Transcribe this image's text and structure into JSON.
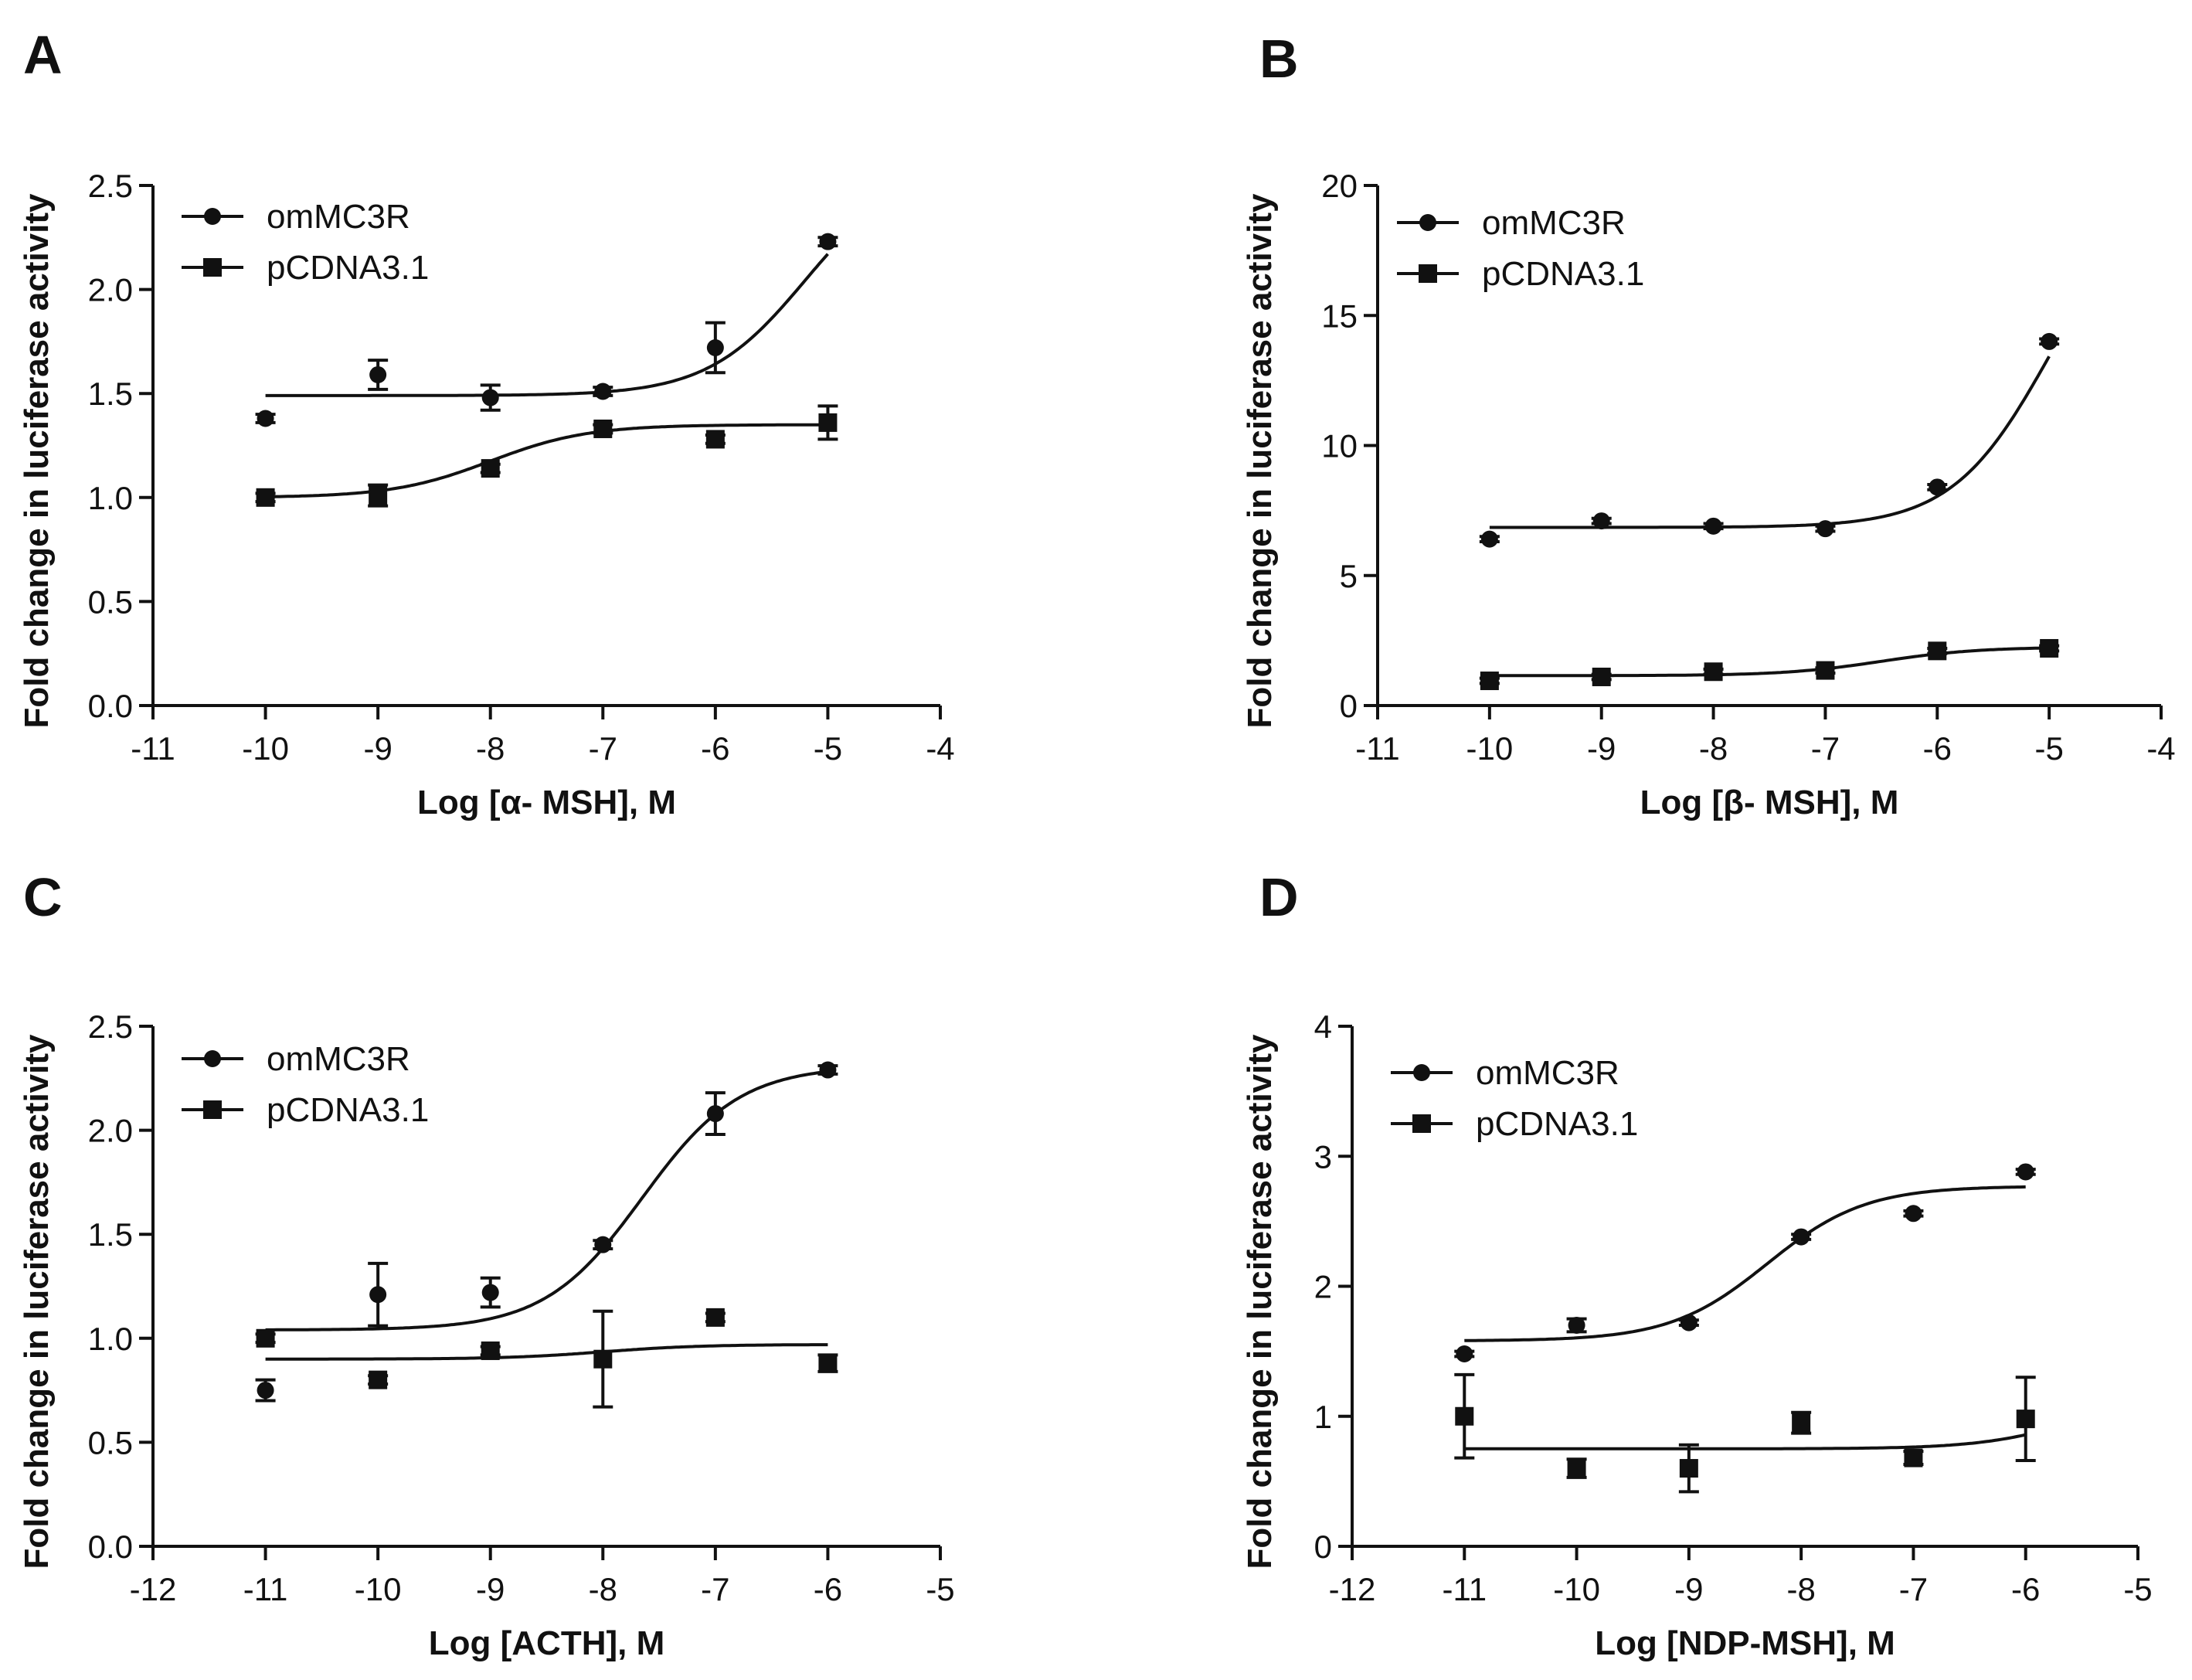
{
  "figure_title": "",
  "chart_data": [
    {
      "panel": "A",
      "type": "scatter",
      "title": "",
      "xlabel": "Log [α- MSH], M",
      "ylabel": "Fold  change in luciferase activity",
      "xlim": [
        -11,
        -4
      ],
      "ylim": [
        0,
        2.5
      ],
      "xticks": [
        "-11",
        "-10",
        "-9",
        "-8",
        "-7",
        "-6",
        "-5",
        "-4"
      ],
      "yticks": [
        "0.0",
        "0.5",
        "1.0",
        "1.5",
        "2.0",
        "2.5"
      ],
      "legend": {
        "placement": "top-left"
      },
      "series": [
        {
          "name": "omMC3R",
          "marker": "circle",
          "points": [
            {
              "x": -10,
              "y": 1.38,
              "err": 0.02
            },
            {
              "x": -9,
              "y": 1.59,
              "err": 0.07
            },
            {
              "x": -8,
              "y": 1.48,
              "err": 0.06
            },
            {
              "x": -7,
              "y": 1.51,
              "err": 0.02
            },
            {
              "x": -6,
              "y": 1.72,
              "err": 0.12
            },
            {
              "x": -5,
              "y": 2.23,
              "err": 0.02
            }
          ],
          "fit": {
            "bottom": 1.49,
            "top": 2.6,
            "logEC50": -5.2,
            "hill": 1.0
          }
        },
        {
          "name": "pCDNA3.1",
          "marker": "square",
          "points": [
            {
              "x": -10,
              "y": 1.0,
              "err": 0.02
            },
            {
              "x": -9,
              "y": 1.01,
              "err": 0.05
            },
            {
              "x": -8,
              "y": 1.14,
              "err": 0.02
            },
            {
              "x": -7,
              "y": 1.33,
              "err": 0.02
            },
            {
              "x": -6,
              "y": 1.28,
              "err": 0.02
            },
            {
              "x": -5,
              "y": 1.36,
              "err": 0.08
            }
          ],
          "fit": {
            "bottom": 1.0,
            "top": 1.35,
            "logEC50": -8.0,
            "hill": 1.0
          }
        }
      ]
    },
    {
      "panel": "B",
      "type": "scatter",
      "title": "",
      "xlabel": "Log [β- MSH], M",
      "ylabel": "Fold  change in luciferase activity",
      "xlim": [
        -11,
        -4
      ],
      "ylim": [
        0,
        20
      ],
      "xticks": [
        "-11",
        "-10",
        "-9",
        "-8",
        "-7",
        "-6",
        "-5",
        "-4"
      ],
      "yticks": [
        "0",
        "5",
        "10",
        "15",
        "20"
      ],
      "legend": {
        "placement": "top-left"
      },
      "series": [
        {
          "name": "omMC3R",
          "marker": "circle",
          "points": [
            {
              "x": -10,
              "y": 6.4,
              "err": 0.1
            },
            {
              "x": -9,
              "y": 7.1,
              "err": 0.1
            },
            {
              "x": -8,
              "y": 6.9,
              "err": 0.1
            },
            {
              "x": -7,
              "y": 6.8,
              "err": 0.1
            },
            {
              "x": -6,
              "y": 8.4,
              "err": 0.1
            },
            {
              "x": -5,
              "y": 14.0,
              "err": 0.1
            }
          ],
          "fit": {
            "bottom": 6.85,
            "top": 20.0,
            "logEC50": -5.0,
            "hill": 1.0
          }
        },
        {
          "name": "pCDNA3.1",
          "marker": "square",
          "points": [
            {
              "x": -10,
              "y": 0.95,
              "err": 0.1
            },
            {
              "x": -9,
              "y": 1.1,
              "err": 0.1
            },
            {
              "x": -8,
              "y": 1.3,
              "err": 0.1
            },
            {
              "x": -7,
              "y": 1.35,
              "err": 0.1
            },
            {
              "x": -6,
              "y": 2.1,
              "err": 0.1
            },
            {
              "x": -5,
              "y": 2.2,
              "err": 0.1
            }
          ],
          "fit": {
            "bottom": 1.15,
            "top": 2.25,
            "logEC50": -6.5,
            "hill": 1.0
          }
        }
      ]
    },
    {
      "panel": "C",
      "type": "scatter",
      "title": "",
      "xlabel": "Log [ACTH], M",
      "ylabel": "Fold  change in luciferase activity",
      "xlim": [
        -12,
        -5
      ],
      "ylim": [
        0,
        2.5
      ],
      "xticks": [
        "-12",
        "-11",
        "-10",
        "-9",
        "-8",
        "-7",
        "-6",
        "-5"
      ],
      "yticks": [
        "0.0",
        "0.5",
        "1.0",
        "1.5",
        "2.0",
        "2.5"
      ],
      "legend": {
        "placement": "top-left"
      },
      "series": [
        {
          "name": "omMC3R",
          "marker": "circle",
          "points": [
            {
              "x": -11,
              "y": 0.75,
              "err": 0.05
            },
            {
              "x": -10,
              "y": 1.21,
              "err": 0.15
            },
            {
              "x": -9,
              "y": 1.22,
              "err": 0.07
            },
            {
              "x": -8,
              "y": 1.45,
              "err": 0.02
            },
            {
              "x": -7,
              "y": 2.08,
              "err": 0.1
            },
            {
              "x": -6,
              "y": 2.29,
              "err": 0.02
            }
          ],
          "fit": {
            "bottom": 1.04,
            "top": 2.31,
            "logEC50": -7.65,
            "hill": 1.0
          }
        },
        {
          "name": "pCDNA3.1",
          "marker": "square",
          "points": [
            {
              "x": -11,
              "y": 1.0,
              "err": 0.02
            },
            {
              "x": -10,
              "y": 0.8,
              "err": 0.02
            },
            {
              "x": -9,
              "y": 0.94,
              "err": 0.02
            },
            {
              "x": -8,
              "y": 0.9,
              "err": 0.23
            },
            {
              "x": -7,
              "y": 1.1,
              "err": 0.02
            },
            {
              "x": -6,
              "y": 0.88,
              "err": 0.04
            }
          ],
          "fit": {
            "bottom": 0.9,
            "top": 0.97,
            "logEC50": -8.0,
            "hill": 1.0
          }
        }
      ]
    },
    {
      "panel": "D",
      "type": "scatter",
      "title": "",
      "xlabel": "Log [NDP-MSH], M",
      "ylabel": "Fold  change in luciferase activity",
      "xlim": [
        -12,
        -5
      ],
      "ylim": [
        0,
        4
      ],
      "xticks": [
        "-12",
        "-11",
        "-10",
        "-9",
        "-8",
        "-7",
        "-6",
        "-5"
      ],
      "yticks": [
        "0",
        "1",
        "2",
        "3",
        "4"
      ],
      "legend": {
        "placement": "top-left"
      },
      "series": [
        {
          "name": "omMC3R",
          "marker": "circle",
          "points": [
            {
              "x": -11,
              "y": 1.48,
              "err": 0.02
            },
            {
              "x": -10,
              "y": 1.7,
              "err": 0.05
            },
            {
              "x": -9,
              "y": 1.72,
              "err": 0.02
            },
            {
              "x": -8,
              "y": 2.38,
              "err": 0.02
            },
            {
              "x": -7,
              "y": 2.56,
              "err": 0.02
            },
            {
              "x": -6,
              "y": 2.88,
              "err": 0.02
            }
          ],
          "fit": {
            "bottom": 1.58,
            "top": 2.77,
            "logEC50": -8.3,
            "hill": 1.0
          }
        },
        {
          "name": "pCDNA3.1",
          "marker": "square",
          "points": [
            {
              "x": -11,
              "y": 1.0,
              "err": 0.32
            },
            {
              "x": -10,
              "y": 0.6,
              "err": 0.07
            },
            {
              "x": -9,
              "y": 0.6,
              "err": 0.18
            },
            {
              "x": -8,
              "y": 0.95,
              "err": 0.08
            },
            {
              "x": -7,
              "y": 0.68,
              "err": 0.05
            },
            {
              "x": -6,
              "y": 0.98,
              "err": 0.32
            }
          ],
          "fit": {
            "bottom": 0.75,
            "top": 1.2,
            "logEC50": -5.5,
            "hill": 1.0
          }
        }
      ]
    }
  ]
}
